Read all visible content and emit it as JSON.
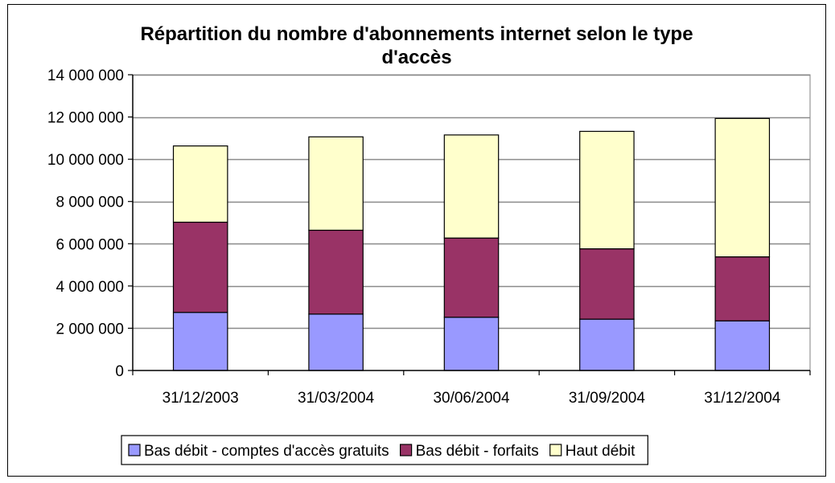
{
  "chart_data": {
    "type": "bar",
    "stacked": true,
    "title_lines": [
      "Répartition du nombre d'abonnements internet selon le type",
      "d'accès"
    ],
    "categories": [
      "31/12/2003",
      "31/03/2004",
      "30/06/2004",
      "31/09/2004",
      "31/12/2004"
    ],
    "series": [
      {
        "name": "Bas débit - comptes d'accès gratuits",
        "color": "#9999ff",
        "values": [
          2750000,
          2670000,
          2520000,
          2430000,
          2350000
        ]
      },
      {
        "name": "Bas débit - forfaits",
        "color": "#993366",
        "values": [
          4270000,
          3970000,
          3750000,
          3330000,
          3030000
        ]
      },
      {
        "name": "Haut débit",
        "color": "#ffffcc",
        "values": [
          3610000,
          4420000,
          4880000,
          5560000,
          6550000
        ]
      }
    ],
    "ylim": [
      0,
      14000000
    ],
    "y_ticks": [
      {
        "value": 0,
        "label": "0"
      },
      {
        "value": 2000000,
        "label": "2 000 000"
      },
      {
        "value": 4000000,
        "label": "4 000 000"
      },
      {
        "value": 6000000,
        "label": "6 000 000"
      },
      {
        "value": 8000000,
        "label": "8 000 000"
      },
      {
        "value": 10000000,
        "label": "10 000 000"
      },
      {
        "value": 12000000,
        "label": "12 000 000"
      },
      {
        "value": 14000000,
        "label": "14 000 000"
      }
    ],
    "grid": true,
    "legend_position": "bottom"
  }
}
